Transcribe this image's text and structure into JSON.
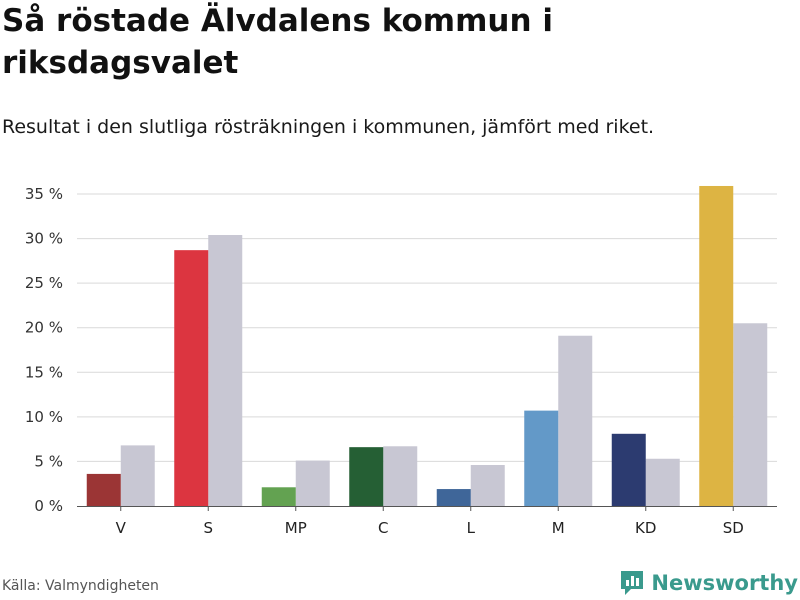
{
  "title": "Så röstade Älvdalens kommun i riksdagsvalet",
  "subtitle": "Resultat i den slutliga rösträkningen i kommunen, jämfört med riket.",
  "source": "Källa: Valmyndigheten",
  "brand": "Newsworthy",
  "colors": {
    "national": "#c8c7d3",
    "grid": "#d9d9d9",
    "axis": "#555555",
    "brand": "#3a9a8d"
  },
  "chart_data": {
    "type": "bar",
    "title": "Så röstade Älvdalens kommun i riksdagsvalet",
    "subtitle": "Resultat i den slutliga rösträkningen i kommunen, jämfört med riket.",
    "xlabel": "",
    "ylabel": "",
    "ylim": [
      0,
      35
    ],
    "yticks": [
      0,
      5,
      10,
      15,
      20,
      25,
      30,
      35
    ],
    "ytick_labels": [
      "0 %",
      "5 %",
      "10 %",
      "15 %",
      "20 %",
      "25 %",
      "30 %",
      "35 %"
    ],
    "grid": true,
    "legend": "none",
    "categories": [
      "V",
      "S",
      "MP",
      "C",
      "L",
      "M",
      "KD",
      "SD"
    ],
    "series": [
      {
        "name": "Älvdalens kommun",
        "values": [
          3.6,
          28.7,
          2.1,
          6.6,
          1.9,
          10.7,
          8.1,
          35.9
        ],
        "colors": [
          "#9b3535",
          "#dc3540",
          "#63a251",
          "#255f34",
          "#3f6699",
          "#6399c8",
          "#2c3b70",
          "#ddb443"
        ]
      },
      {
        "name": "Riket",
        "values": [
          6.8,
          30.4,
          5.1,
          6.7,
          4.6,
          19.1,
          5.3,
          20.5
        ],
        "color": "#c8c7d3"
      }
    ]
  }
}
